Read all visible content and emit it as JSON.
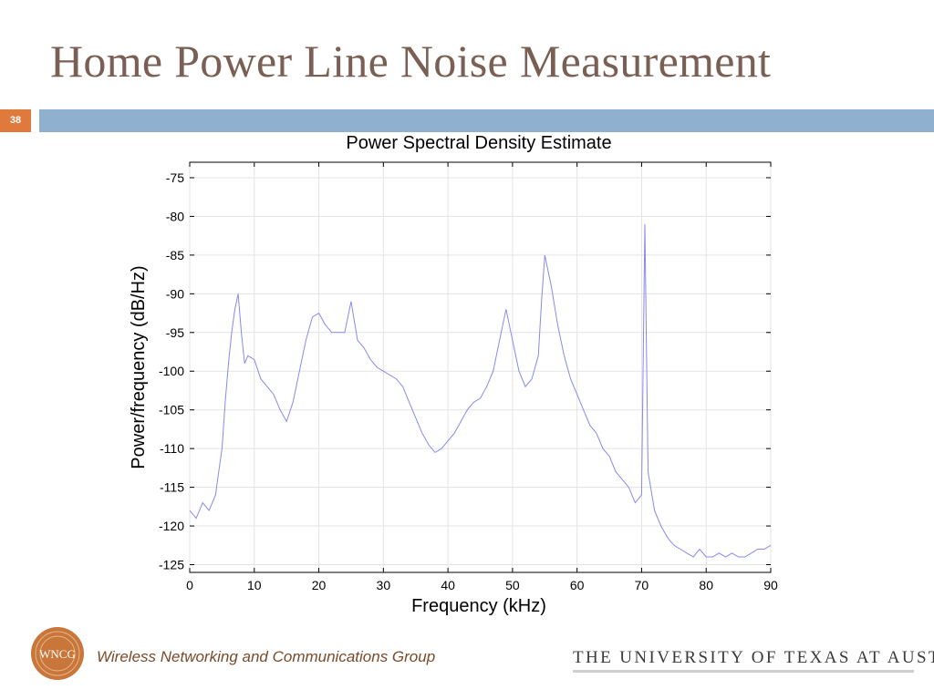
{
  "slide": {
    "title": "Home Power Line Noise Measurement",
    "number": "38",
    "footer_logo_text": "WNCG",
    "footer_group": "Wireless Networking and Communications Group",
    "footer_university": "THE UNIVERSITY OF TEXAS AT AUSTIN"
  },
  "colors": {
    "title": "#7a5f54",
    "accent_band": "#8fb0cf",
    "slide_number_bg": "#e07a3c",
    "series_line": "#8888ee",
    "logo": "#c8763a"
  },
  "chart_data": {
    "type": "line",
    "title": "Power Spectral Density Estimate",
    "xlabel": "Frequency (kHz)",
    "ylabel": "Power/frequency (dB/Hz)",
    "xlim": [
      0,
      90
    ],
    "ylim": [
      -126,
      -73
    ],
    "xticks": [
      0,
      10,
      20,
      30,
      40,
      50,
      60,
      70,
      80,
      90
    ],
    "yticks": [
      -75,
      -80,
      -85,
      -90,
      -95,
      -100,
      -105,
      -110,
      -115,
      -120,
      -125
    ],
    "grid": true,
    "series": [
      {
        "x": [
          0,
          1,
          2,
          3,
          4,
          4.5,
          5,
          5.5,
          6,
          6.5,
          7,
          7.5,
          8,
          8.5,
          9,
          10,
          11,
          12,
          13,
          14,
          15,
          16,
          17,
          18,
          19,
          20,
          21,
          22,
          23,
          24,
          25,
          26,
          27,
          28,
          29,
          30,
          31,
          32,
          33,
          34,
          35,
          36,
          37,
          38,
          39,
          40,
          41,
          42,
          43,
          44,
          45,
          46,
          47,
          48,
          49,
          50,
          51,
          52,
          53,
          54,
          54.5,
          55,
          55.5,
          56,
          57,
          58,
          59,
          60,
          61,
          62,
          63,
          64,
          65,
          66,
          67,
          68,
          69,
          70,
          70.5,
          71,
          72,
          73,
          74,
          75,
          76,
          77,
          78,
          79,
          80,
          81,
          82,
          83,
          84,
          85,
          86,
          87,
          88,
          89,
          90
        ],
        "y": [
          -118,
          -119,
          -117,
          -118,
          -116,
          -113,
          -110,
          -104,
          -99,
          -95,
          -92,
          -90,
          -95,
          -99,
          -98,
          -98.5,
          -101,
          -102,
          -103,
          -105,
          -106.5,
          -104,
          -100,
          -96,
          -93,
          -92.5,
          -94,
          -95,
          -95,
          -95,
          -91,
          -96,
          -97,
          -98.5,
          -99.5,
          -100,
          -100.5,
          -101,
          -102,
          -104,
          -106,
          -108,
          -109.5,
          -110.5,
          -110,
          -109,
          -108,
          -106.5,
          -105,
          -104,
          -103.5,
          -102,
          -100,
          -96,
          -92,
          -96,
          -100,
          -102,
          -101,
          -98,
          -91,
          -85,
          -87,
          -89,
          -94,
          -98,
          -101,
          -103,
          -105,
          -107,
          -108,
          -110,
          -111,
          -113,
          -114,
          -115,
          -117,
          -116,
          -81,
          -113,
          -118,
          -120,
          -121.5,
          -122.5,
          -123,
          -123.5,
          -124,
          -123,
          -124,
          -124,
          -123.5,
          -124,
          -123.5,
          -124,
          -124,
          -123.5,
          -123,
          -123,
          -122.5
        ]
      }
    ]
  }
}
